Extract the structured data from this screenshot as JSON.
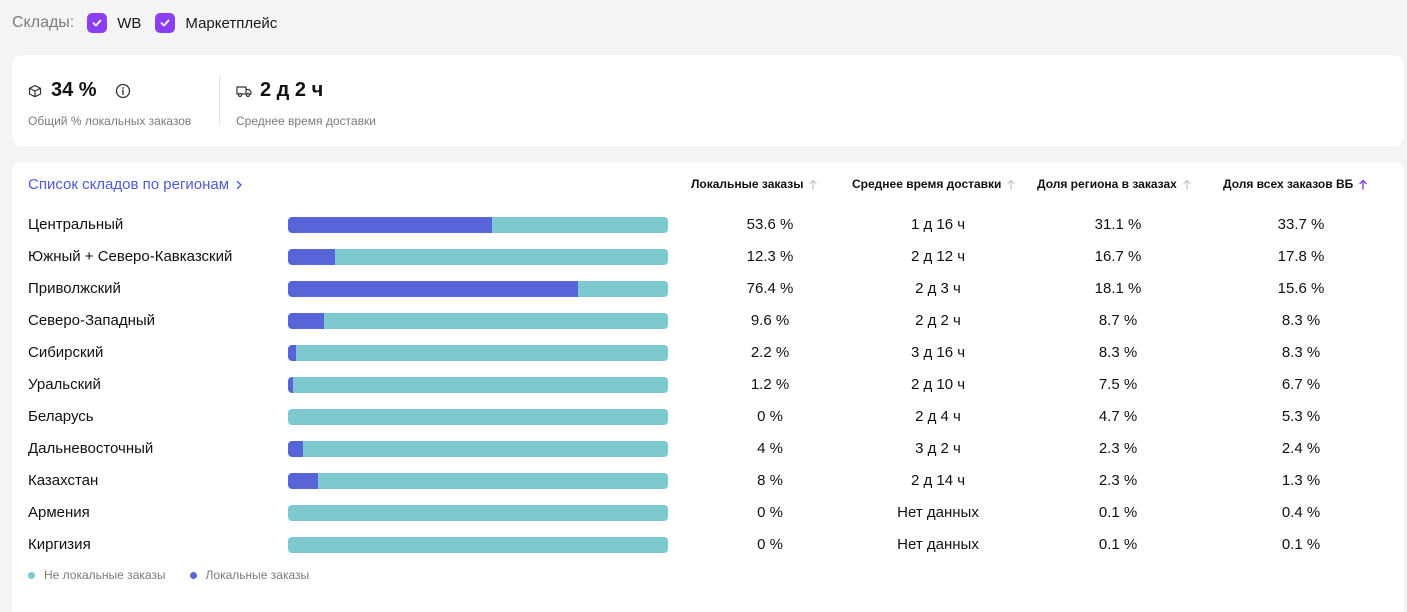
{
  "filters": {
    "label": "Склады:",
    "options": [
      {
        "label": "WB",
        "checked": true
      },
      {
        "label": "Маркетплейс",
        "checked": true
      }
    ],
    "checkbox_color": "#8a3ff0"
  },
  "summary": {
    "local_share": {
      "value": "34 %",
      "caption": "Общий % локальных заказов",
      "icon": "box-icon",
      "info_icon": "info-icon"
    },
    "delivery_time": {
      "value": "2 д 2 ч",
      "caption": "Среднее время доставки",
      "icon": "truck-icon"
    }
  },
  "table": {
    "title_link": "Список складов по регионам",
    "columns": [
      {
        "label": "Локальные заказы",
        "sort": "none"
      },
      {
        "label": "Среднее время доставки",
        "sort": "none"
      },
      {
        "label": "Доля региона в заказах",
        "sort": "none"
      },
      {
        "label": "Доля всех заказов ВБ",
        "sort": "active-asc"
      }
    ],
    "rows": [
      {
        "region": "Центральный",
        "local_fraction": 0.536,
        "local": "53.6 %",
        "delivery": "1 д 16 ч",
        "region_share": "31.1 %",
        "wb_share": "33.7 %"
      },
      {
        "region": "Южный + Северо-Кавказский",
        "local_fraction": 0.123,
        "local": "12.3 %",
        "delivery": "2 д 12 ч",
        "region_share": "16.7 %",
        "wb_share": "17.8 %"
      },
      {
        "region": "Приволжский",
        "local_fraction": 0.764,
        "local": "76.4 %",
        "delivery": "2 д 3 ч",
        "region_share": "18.1 %",
        "wb_share": "15.6 %"
      },
      {
        "region": "Северо-Западный",
        "local_fraction": 0.096,
        "local": "9.6 %",
        "delivery": "2 д 2 ч",
        "region_share": "8.7 %",
        "wb_share": "8.3 %"
      },
      {
        "region": "Сибирский",
        "local_fraction": 0.022,
        "local": "2.2 %",
        "delivery": "3 д 16 ч",
        "region_share": "8.3 %",
        "wb_share": "8.3 %"
      },
      {
        "region": "Уральский",
        "local_fraction": 0.012,
        "local": "1.2 %",
        "delivery": "2 д 10 ч",
        "region_share": "7.5 %",
        "wb_share": "6.7 %"
      },
      {
        "region": "Беларусь",
        "local_fraction": 0,
        "local": "0 %",
        "delivery": "2 д 4 ч",
        "region_share": "4.7 %",
        "wb_share": "5.3 %"
      },
      {
        "region": "Дальневосточный",
        "local_fraction": 0.04,
        "local": "4 %",
        "delivery": "3 д 2 ч",
        "region_share": "2.3 %",
        "wb_share": "2.4 %"
      },
      {
        "region": "Казахстан",
        "local_fraction": 0.08,
        "local": "8 %",
        "delivery": "2 д 14 ч",
        "region_share": "2.3 %",
        "wb_share": "1.3 %"
      },
      {
        "region": "Армения",
        "local_fraction": 0,
        "local": "0 %",
        "delivery": "Нет данных",
        "region_share": "0.1 %",
        "wb_share": "0.4 %"
      },
      {
        "region": "Киргизия",
        "local_fraction": 0,
        "local": "0 %",
        "delivery": "Нет данных",
        "region_share": "0.1 %",
        "wb_share": "0.1 %"
      }
    ]
  },
  "legend": [
    {
      "label": "Не локальные заказы",
      "color": "#7dc9cf"
    },
    {
      "label": "Локальные заказы",
      "color": "#5765d8"
    }
  ],
  "colors": {
    "link": "#4f5bd5",
    "bar_bg": "#7dc9cf",
    "bar_fill": "#5765d8",
    "sort_active": "#8a3ff0",
    "sort_inactive": "#c4c4c8"
  }
}
